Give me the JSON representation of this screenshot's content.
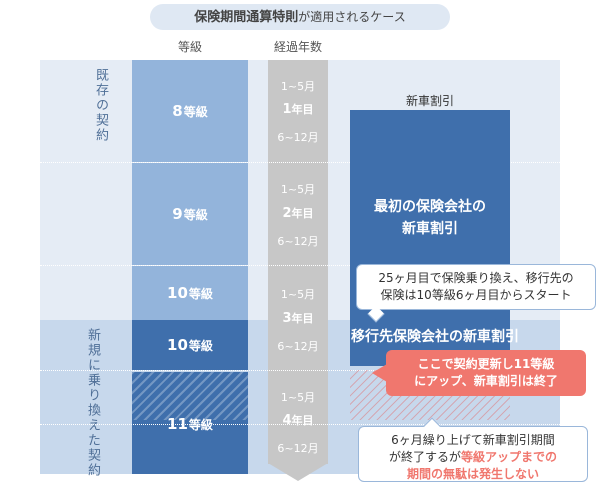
{
  "title": {
    "bold": "保険期間通算特則",
    "rest": "が適用されるケース"
  },
  "headers": {
    "grade": "等級",
    "years": "経過年数"
  },
  "sections": {
    "existing": "既存の契約",
    "new": "新規に乗り換えた契約"
  },
  "grades": [
    {
      "num": "8",
      "unit": "等級"
    },
    {
      "num": "9",
      "unit": "等級"
    },
    {
      "num": "10",
      "unit": "等級"
    },
    {
      "num": "10",
      "unit": "等級"
    },
    {
      "num": "11",
      "unit": "等級"
    }
  ],
  "years": [
    {
      "first": "1~5月",
      "num": "1",
      "unit": "年目",
      "second": "6~12月"
    },
    {
      "first": "1~5月",
      "num": "2",
      "unit": "年目",
      "second": "6~12月"
    },
    {
      "first": "1~5月",
      "num": "3",
      "unit": "年目",
      "second": "6~12月"
    },
    {
      "first": "1~5月",
      "num": "4",
      "unit": "年目",
      "second": "6~12月"
    }
  ],
  "discount": {
    "top_label": "新車割引",
    "first_line1": "最初の保険会社の",
    "first_line2": "新車割引",
    "new_label": "移行先保険会社の新車割引"
  },
  "callouts": {
    "switch_line1": "25ヶ月目で保険乗り換え、移行先の",
    "switch_line2": "保険は10等級6ヶ月目からスタート",
    "renew_line1": "ここで契約更新し11等級",
    "renew_line2": "にアップ、新車割引は終了",
    "end_line1": "6ヶ月繰り上げて新車割引期間",
    "end_line2a": "が終了するが",
    "end_line2b": "等級アップまでの",
    "end_line3": "期間の無駄は発生しない"
  },
  "colors": {
    "dark_blue": "#3f6fac",
    "light_blue": "#93b4db",
    "accent_red": "#f0776e",
    "gray": "#c7c7c7"
  }
}
